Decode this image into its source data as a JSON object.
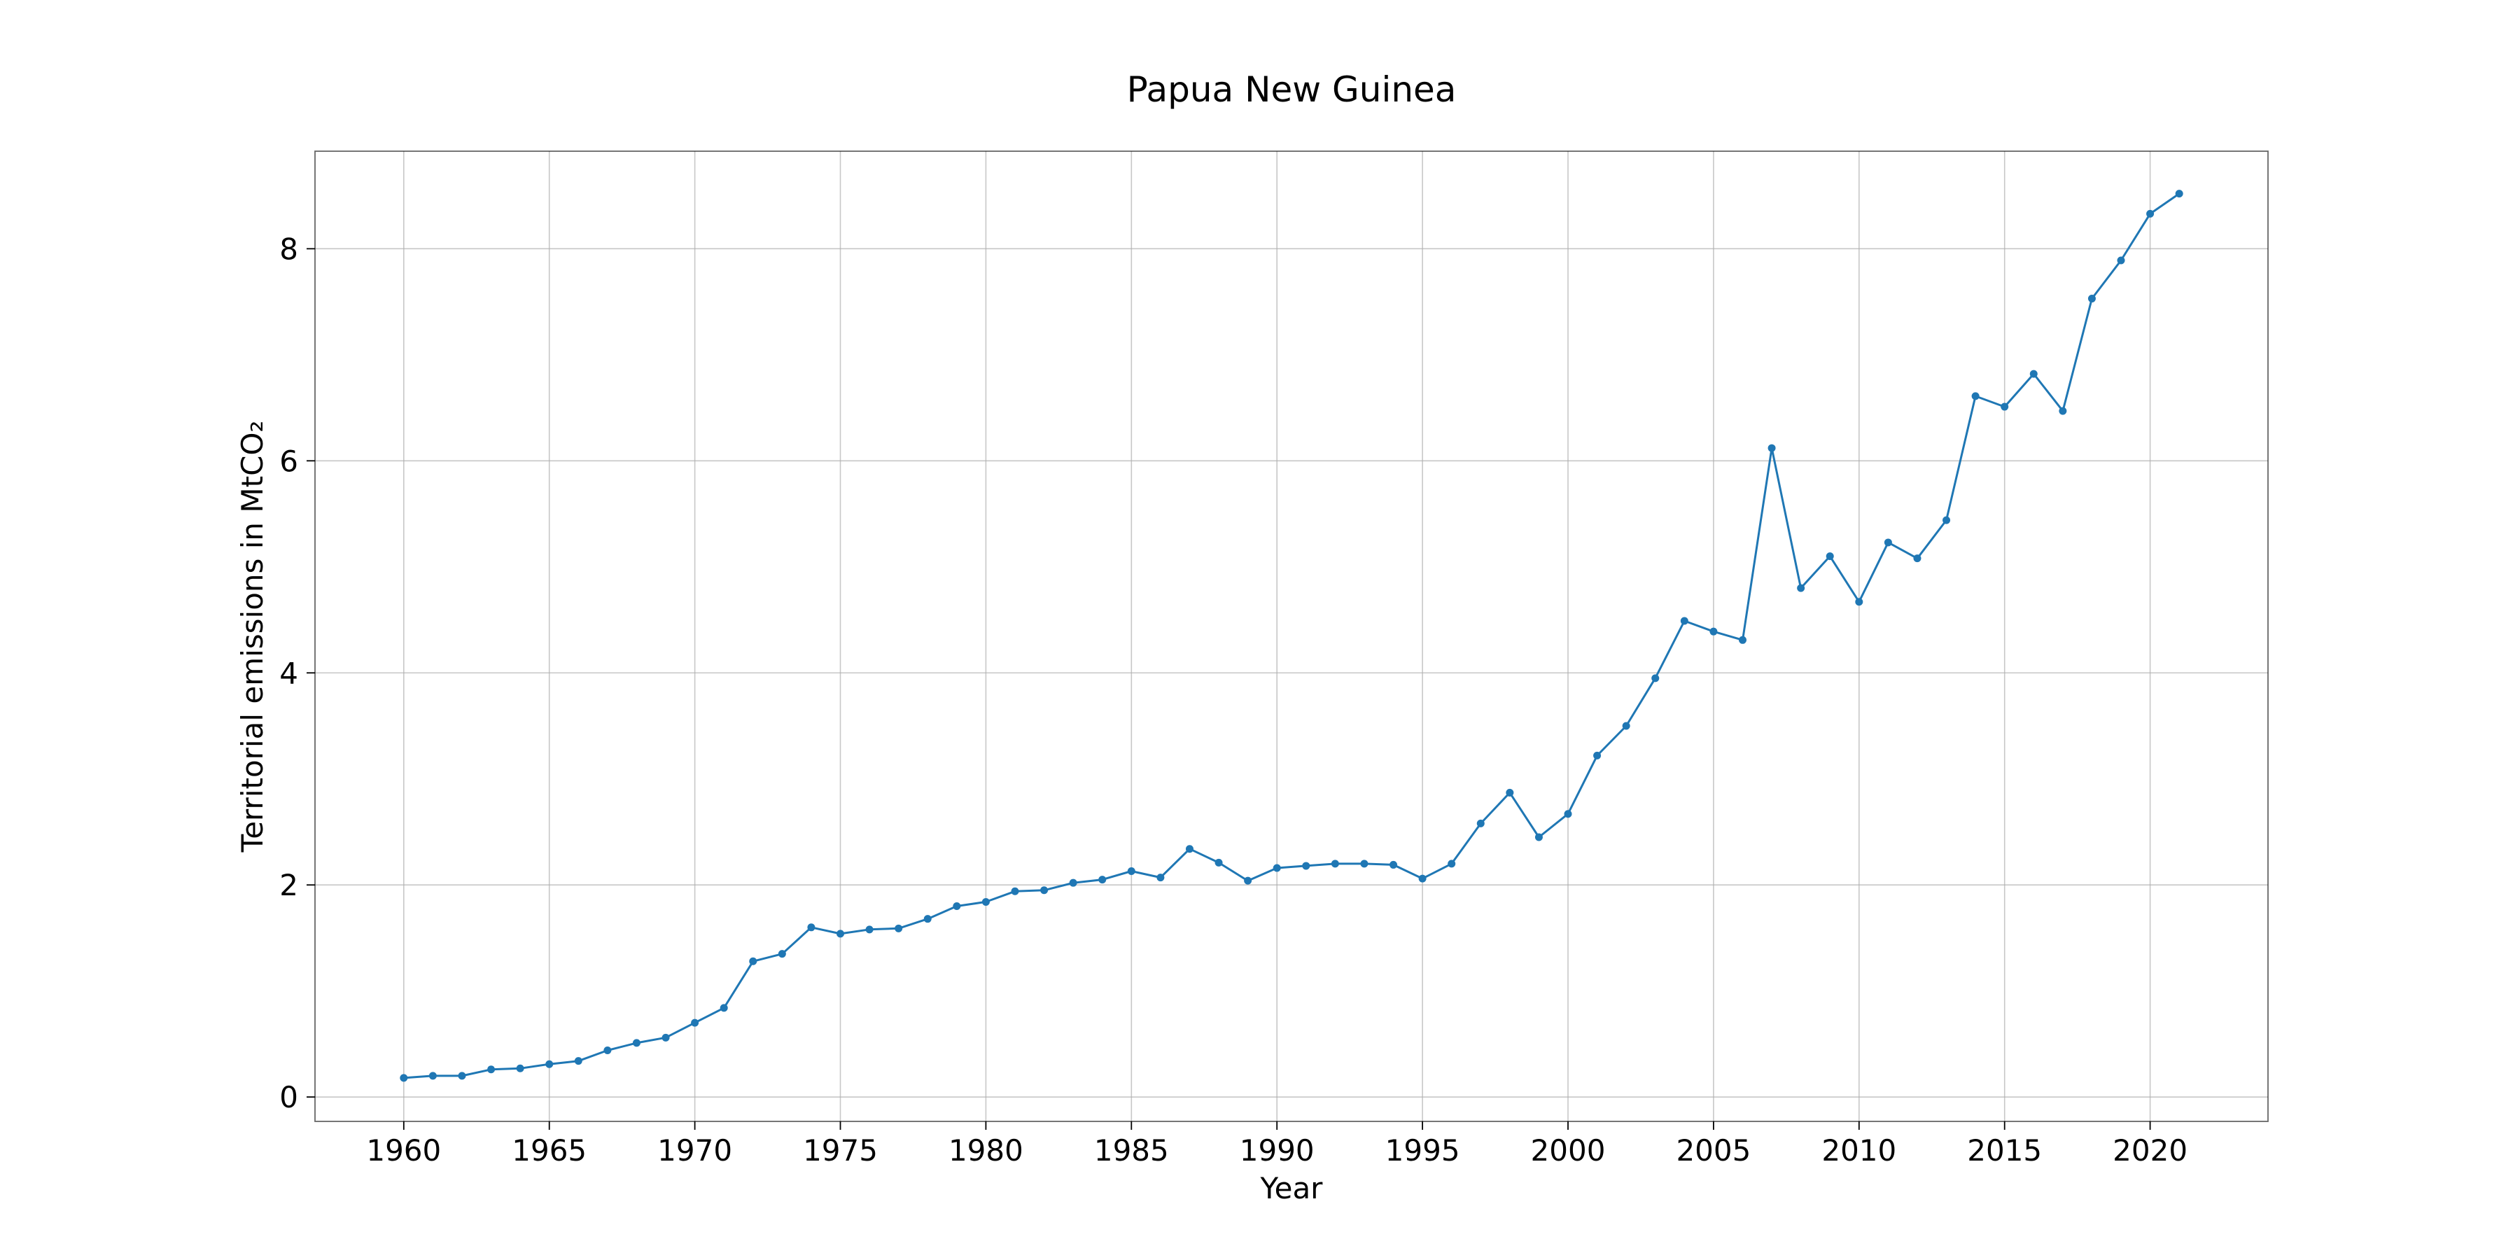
{
  "chart_data": {
    "type": "line",
    "title": "Papua New Guinea",
    "xlabel": "Year",
    "ylabel": "Territorial emissions in MtCO₂",
    "x_ticks": [
      1960,
      1965,
      1970,
      1975,
      1980,
      1985,
      1990,
      1995,
      2000,
      2005,
      2010,
      2015,
      2020
    ],
    "y_ticks": [
      0,
      2,
      4,
      6,
      8
    ],
    "xlim": [
      1956.95,
      2024.05
    ],
    "ylim": [
      -0.23,
      8.92
    ],
    "grid": true,
    "series_color": "#1f77b4",
    "x": [
      1960,
      1961,
      1962,
      1963,
      1964,
      1965,
      1966,
      1967,
      1968,
      1969,
      1970,
      1971,
      1972,
      1973,
      1974,
      1975,
      1976,
      1977,
      1978,
      1979,
      1980,
      1981,
      1982,
      1983,
      1984,
      1985,
      1986,
      1987,
      1988,
      1989,
      1990,
      1991,
      1992,
      1993,
      1994,
      1995,
      1996,
      1997,
      1998,
      1999,
      2000,
      2001,
      2002,
      2003,
      2004,
      2005,
      2006,
      2007,
      2008,
      2009,
      2010,
      2011,
      2012,
      2013,
      2014,
      2015,
      2016,
      2017,
      2018,
      2019,
      2020,
      2021
    ],
    "series": [
      {
        "values": [
          0.18,
          0.2,
          0.2,
          0.26,
          0.27,
          0.31,
          0.34,
          0.44,
          0.51,
          0.56,
          0.7,
          0.84,
          1.28,
          1.35,
          1.6,
          1.54,
          1.58,
          1.59,
          1.68,
          1.8,
          1.84,
          1.94,
          1.95,
          2.02,
          2.05,
          2.13,
          2.07,
          2.34,
          2.21,
          2.04,
          2.16,
          2.18,
          2.2,
          2.2,
          2.19,
          2.06,
          2.2,
          2.58,
          2.87,
          2.45,
          2.67,
          3.22,
          3.5,
          3.95,
          4.49,
          4.39,
          4.31,
          6.12,
          4.8,
          5.1,
          4.67,
          5.23,
          5.08,
          5.44,
          6.61,
          6.51,
          6.82,
          6.47,
          7.53,
          7.89,
          8.33,
          8.52
        ]
      }
    ]
  }
}
